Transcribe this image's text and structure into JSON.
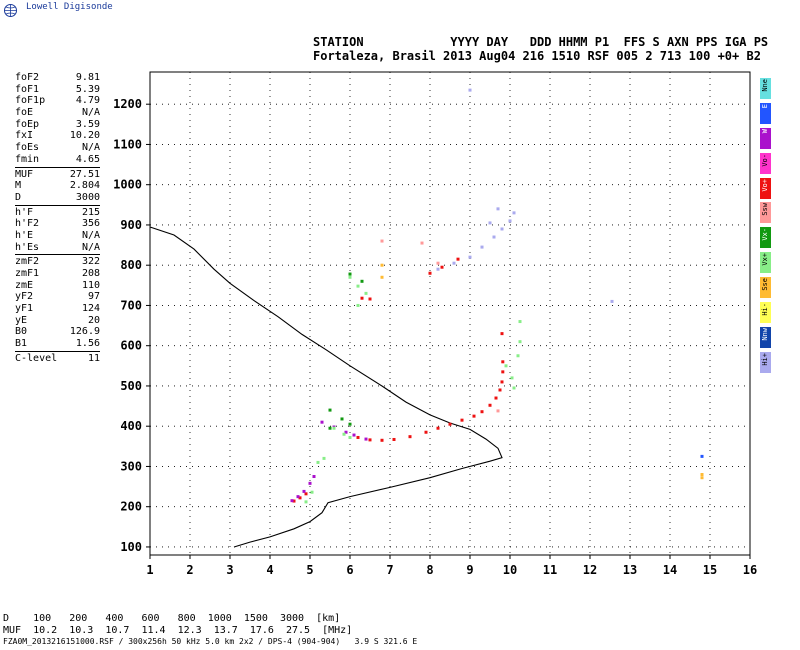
{
  "logo": {
    "text": "Lowell Digisonde"
  },
  "header": {
    "line1": "STATION            YYYY DAY   DDD HHMM P1  FFS S AXN PPS IGA PS",
    "line2": "Fortaleza, Brasil 2013 Aug04 216 1510 RSF 005 2 713 100 +0+ B2"
  },
  "params": [
    {
      "label": "foF2",
      "value": "9.81"
    },
    {
      "label": "foF1",
      "value": "5.39"
    },
    {
      "label": "foF1p",
      "value": "4.79"
    },
    {
      "label": "foE",
      "value": "N/A"
    },
    {
      "label": "foEp",
      "value": "3.59"
    },
    {
      "label": "fxI",
      "value": "10.20"
    },
    {
      "label": "foEs",
      "value": "N/A"
    },
    {
      "label": "fmin",
      "value": "4.65"
    },
    {
      "sep": true
    },
    {
      "label": "MUF",
      "value": "27.51"
    },
    {
      "label": "M",
      "value": "2.804"
    },
    {
      "label": "D",
      "value": "3000"
    },
    {
      "sep": true
    },
    {
      "label": "h'F",
      "value": "215"
    },
    {
      "label": "h'F2",
      "value": "356"
    },
    {
      "label": "h'E",
      "value": "N/A"
    },
    {
      "label": "h'Es",
      "value": "N/A"
    },
    {
      "sep": true
    },
    {
      "label": "zmF2",
      "value": "322"
    },
    {
      "label": "zmF1",
      "value": "208"
    },
    {
      "label": "zmE",
      "value": "110"
    },
    {
      "label": "yF2",
      "value": "97"
    },
    {
      "label": "yF1",
      "value": "124"
    },
    {
      "label": "yE",
      "value": "20"
    },
    {
      "label": "B0",
      "value": "126.9"
    },
    {
      "label": "B1",
      "value": "1.56"
    },
    {
      "sep": true
    },
    {
      "label": "C-level",
      "value": "11"
    }
  ],
  "legend": [
    {
      "label": "Nne",
      "color": "#66e0e0"
    },
    {
      "label": "E",
      "color": "#2255ff"
    },
    {
      "label": "W",
      "color": "#aa11cc"
    },
    {
      "label": "Vo-",
      "color": "#ff33cc"
    },
    {
      "label": "Vo+",
      "color": "#ee1111"
    },
    {
      "label": "Ssw",
      "color": "#ff9999"
    },
    {
      "label": "Vx-",
      "color": "#119911"
    },
    {
      "label": "Vx+",
      "color": "#88ee88"
    },
    {
      "label": "Sse",
      "color": "#ffbb33"
    },
    {
      "label": "Hi-",
      "color": "#ffff55"
    },
    {
      "label": "Nnw",
      "color": "#1144aa"
    },
    {
      "label": "Hi+",
      "color": "#aaaaee"
    }
  ],
  "distance_table": {
    "line1": "D    100   200   400   600   800  1000  1500  3000  [km]",
    "line2": "MUF  10.2  10.3  10.7  11.4  12.3  13.7  17.6  27.5  [MHz]"
  },
  "footer": "FZA0M_2013216151000.RSF / 300x256h 50 kHz 5.0 km 2x2 / DPS-4 (904-904)   3.9 S 321.6 E",
  "chart_data": {
    "type": "scatter",
    "title": "",
    "xlabel": "",
    "ylabel": "",
    "xlim": [
      1,
      16
    ],
    "ylim": [
      80,
      1280
    ],
    "x_ticks": [
      1,
      2,
      3,
      4,
      5,
      6,
      7,
      8,
      9,
      10,
      11,
      12,
      13,
      14,
      15,
      16
    ],
    "y_ticks": [
      100,
      200,
      300,
      400,
      500,
      600,
      700,
      800,
      900,
      1000,
      1100,
      1200
    ],
    "grid": true,
    "series": [
      {
        "color": "#000000",
        "style": "line",
        "points": [
          [
            3.1,
            100
          ],
          [
            3.5,
            112
          ],
          [
            4.0,
            125
          ],
          [
            4.6,
            145
          ],
          [
            5.0,
            163
          ],
          [
            5.3,
            185
          ],
          [
            5.45,
            210
          ],
          [
            6.0,
            225
          ],
          [
            7.0,
            248
          ],
          [
            8.0,
            272
          ],
          [
            8.8,
            295
          ],
          [
            9.5,
            313
          ],
          [
            9.8,
            322
          ],
          [
            9.7,
            345
          ],
          [
            9.4,
            368
          ],
          [
            9.0,
            392
          ],
          [
            8.5,
            408
          ],
          [
            8.0,
            428
          ],
          [
            7.4,
            460
          ],
          [
            6.8,
            500
          ],
          [
            6.0,
            550
          ],
          [
            5.4,
            590
          ],
          [
            4.8,
            628
          ],
          [
            4.2,
            672
          ],
          [
            3.6,
            712
          ],
          [
            3.0,
            755
          ],
          [
            2.6,
            790
          ],
          [
            2.1,
            840
          ],
          [
            1.6,
            875
          ],
          [
            1.0,
            895
          ]
        ]
      },
      {
        "color": "#ee1111",
        "style": "dots",
        "points": [
          [
            6.2,
            372
          ],
          [
            6.5,
            366
          ],
          [
            6.8,
            365
          ],
          [
            7.1,
            367
          ],
          [
            7.5,
            374
          ],
          [
            7.9,
            385
          ],
          [
            8.2,
            395
          ],
          [
            8.5,
            405
          ],
          [
            8.8,
            415
          ],
          [
            9.1,
            425
          ],
          [
            9.3,
            436
          ],
          [
            9.5,
            452
          ],
          [
            9.65,
            470
          ],
          [
            9.75,
            490
          ],
          [
            9.8,
            510
          ],
          [
            9.82,
            535
          ],
          [
            9.82,
            560
          ],
          [
            4.6,
            214
          ],
          [
            4.75,
            222
          ],
          [
            4.9,
            232
          ],
          [
            6.3,
            718
          ],
          [
            6.5,
            716
          ],
          [
            9.8,
            630
          ],
          [
            8.0,
            780
          ],
          [
            8.3,
            795
          ],
          [
            8.7,
            815
          ]
        ]
      },
      {
        "color": "#aa11cc",
        "style": "dots",
        "points": [
          [
            5.3,
            410
          ],
          [
            5.6,
            398
          ],
          [
            5.9,
            385
          ],
          [
            6.1,
            378
          ],
          [
            6.4,
            368
          ],
          [
            4.55,
            215
          ],
          [
            4.7,
            225
          ],
          [
            4.85,
            238
          ],
          [
            5.0,
            258
          ],
          [
            5.1,
            275
          ]
        ]
      },
      {
        "color": "#88ee88",
        "style": "dots",
        "points": [
          [
            5.2,
            310
          ],
          [
            5.35,
            320
          ],
          [
            5.6,
            395
          ],
          [
            5.85,
            380
          ],
          [
            6.0,
            372
          ],
          [
            9.9,
            550
          ],
          [
            10.05,
            520
          ],
          [
            10.1,
            495
          ],
          [
            10.2,
            575
          ],
          [
            10.25,
            610
          ],
          [
            10.25,
            660
          ],
          [
            6.0,
            770
          ],
          [
            6.2,
            748
          ],
          [
            6.4,
            730
          ],
          [
            4.9,
            212
          ],
          [
            5.05,
            236
          ],
          [
            6.2,
            700
          ]
        ]
      },
      {
        "color": "#119911",
        "style": "dots",
        "points": [
          [
            5.8,
            418
          ],
          [
            6.0,
            405
          ],
          [
            5.5,
            440
          ],
          [
            6.0,
            778
          ],
          [
            6.3,
            760
          ],
          [
            5.5,
            395
          ]
        ]
      },
      {
        "color": "#aaaaee",
        "style": "dots",
        "points": [
          [
            8.6,
            805
          ],
          [
            9.0,
            820
          ],
          [
            9.3,
            845
          ],
          [
            9.6,
            870
          ],
          [
            9.8,
            890
          ],
          [
            10.0,
            910
          ],
          [
            10.1,
            930
          ],
          [
            9.5,
            905
          ],
          [
            9.7,
            940
          ],
          [
            12.55,
            710
          ],
          [
            9.0,
            1235
          ],
          [
            8.2,
            790
          ]
        ]
      },
      {
        "color": "#2255ff",
        "style": "dots",
        "points": [
          [
            14.8,
            325
          ]
        ]
      },
      {
        "color": "#ffbb33",
        "style": "dots",
        "points": [
          [
            6.8,
            800
          ],
          [
            6.8,
            770
          ],
          [
            14.8,
            272
          ],
          [
            14.8,
            280
          ]
        ]
      },
      {
        "color": "#ff9999",
        "style": "dots",
        "points": [
          [
            6.8,
            860
          ],
          [
            7.8,
            855
          ],
          [
            8.2,
            805
          ],
          [
            9.7,
            438
          ]
        ]
      }
    ]
  }
}
